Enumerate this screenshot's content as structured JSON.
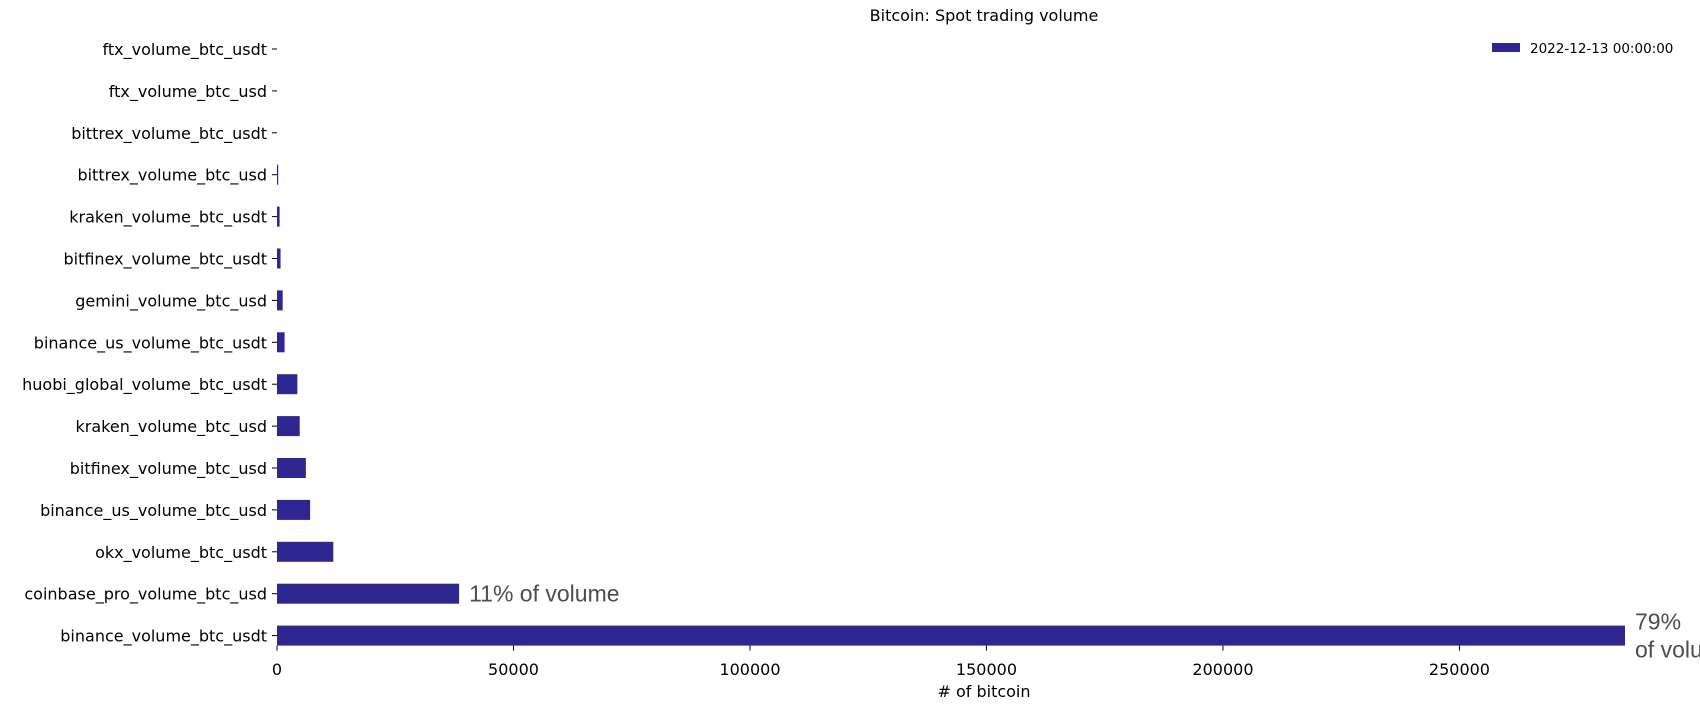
{
  "chart_data": {
    "type": "bar",
    "orientation": "horizontal",
    "title": "Bitcoin: Spot trading volume",
    "xlabel": "# of bitcoin",
    "ylabel": "",
    "xlim": [
      0,
      285000
    ],
    "xticks": [
      0,
      50000,
      100000,
      150000,
      200000,
      250000
    ],
    "xtick_labels": [
      "0",
      "50000",
      "100000",
      "150000",
      "200000",
      "250000"
    ],
    "grid": false,
    "legend_position": "top-right",
    "color": "#2e2792",
    "categories": [
      "ftx_volume_btc_usdt",
      "ftx_volume_btc_usd",
      "bittrex_volume_btc_usdt",
      "bittrex_volume_btc_usd",
      "kraken_volume_btc_usdt",
      "bitfinex_volume_btc_usdt",
      "gemini_volume_btc_usd",
      "binance_us_volume_btc_usdt",
      "huobi_global_volume_btc_usdt",
      "kraken_volume_btc_usd",
      "bitfinex_volume_btc_usd",
      "binance_us_volume_btc_usd",
      "okx_volume_btc_usdt",
      "coinbase_pro_volume_btc_usd",
      "binance_volume_btc_usdt"
    ],
    "series": [
      {
        "name": "2022-12-13 00:00:00",
        "values": [
          0,
          0,
          0,
          250,
          550,
          750,
          1200,
          1600,
          4300,
          4800,
          6100,
          7000,
          11900,
          38500,
          285000
        ]
      }
    ],
    "annotations": [
      {
        "category": "coinbase_pro_volume_btc_usd",
        "lines": [
          "11% of volume"
        ]
      },
      {
        "category": "binance_volume_btc_usdt",
        "lines": [
          "79%",
          "of volu"
        ]
      }
    ]
  }
}
